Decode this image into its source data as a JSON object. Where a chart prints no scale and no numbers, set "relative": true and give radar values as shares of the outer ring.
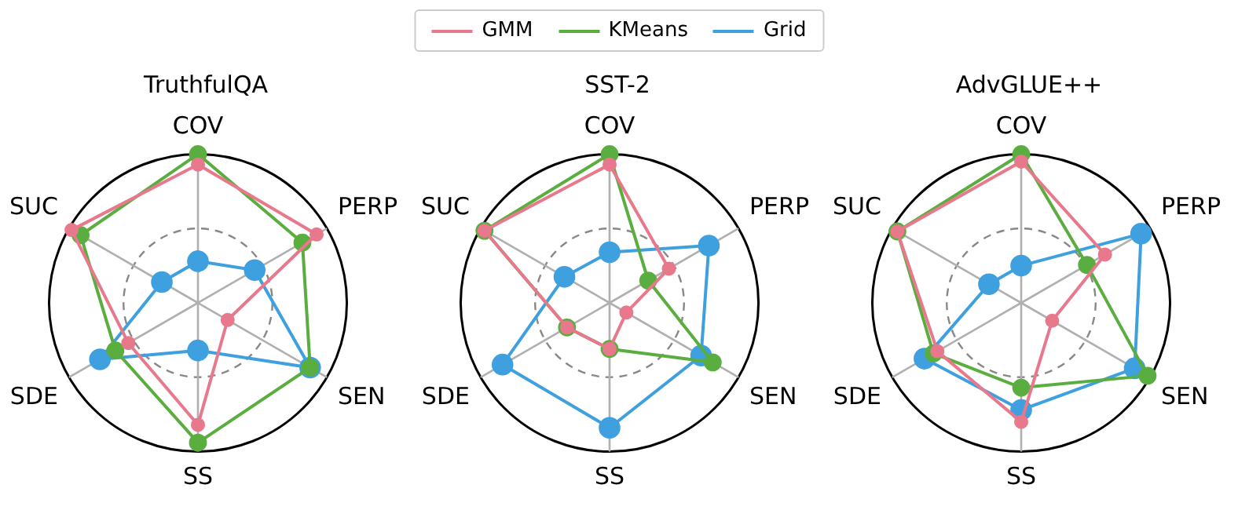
{
  "chart_data": [
    {
      "type": "radar",
      "title": "TruthfulQA",
      "categories": [
        "COV",
        "PERP",
        "SEN",
        "SS",
        "SDE",
        "SUC"
      ],
      "relative": true,
      "grid": true,
      "legend": "top",
      "marker": "circle",
      "series": [
        {
          "name": "GMM",
          "color": "#e8788b",
          "values": [
            0.93,
            0.92,
            0.23,
            0.82,
            0.54,
            0.98
          ]
        },
        {
          "name": "KMeans",
          "color": "#5aad3f",
          "values": [
            1.0,
            0.81,
            0.87,
            0.94,
            0.64,
            0.91
          ]
        },
        {
          "name": "Grid",
          "color": "#3fa0e0",
          "values": [
            0.28,
            0.44,
            0.87,
            0.32,
            0.76,
            0.28
          ]
        }
      ]
    },
    {
      "type": "radar",
      "title": "SST-2",
      "categories": [
        "COV",
        "PERP",
        "SEN",
        "SS",
        "SDE",
        "SUC"
      ],
      "relative": true,
      "grid": true,
      "legend": "top",
      "marker": "circle",
      "series": [
        {
          "name": "GMM",
          "color": "#e8788b",
          "values": [
            0.93,
            0.46,
            0.13,
            0.31,
            0.33,
            0.97
          ]
        },
        {
          "name": "KMeans",
          "color": "#5aad3f",
          "values": [
            1.0,
            0.3,
            0.8,
            0.31,
            0.33,
            0.97
          ]
        },
        {
          "name": "Grid",
          "color": "#3fa0e0",
          "values": [
            0.34,
            0.77,
            0.71,
            0.84,
            0.83,
            0.35
          ]
        }
      ]
    },
    {
      "type": "radar",
      "title": "AdvGLUE++",
      "categories": [
        "COV",
        "PERP",
        "SEN",
        "SS",
        "SDE",
        "SUC"
      ],
      "relative": true,
      "grid": true,
      "legend": "top",
      "marker": "circle",
      "series": [
        {
          "name": "GMM",
          "color": "#e8788b",
          "values": [
            0.95,
            0.65,
            0.24,
            0.8,
            0.65,
            0.96
          ]
        },
        {
          "name": "KMeans",
          "color": "#5aad3f",
          "values": [
            1.0,
            0.51,
            0.98,
            0.57,
            0.68,
            0.96
          ]
        },
        {
          "name": "Grid",
          "color": "#3fa0e0",
          "values": [
            0.25,
            0.93,
            0.88,
            0.72,
            0.75,
            0.25
          ]
        }
      ]
    }
  ]
}
